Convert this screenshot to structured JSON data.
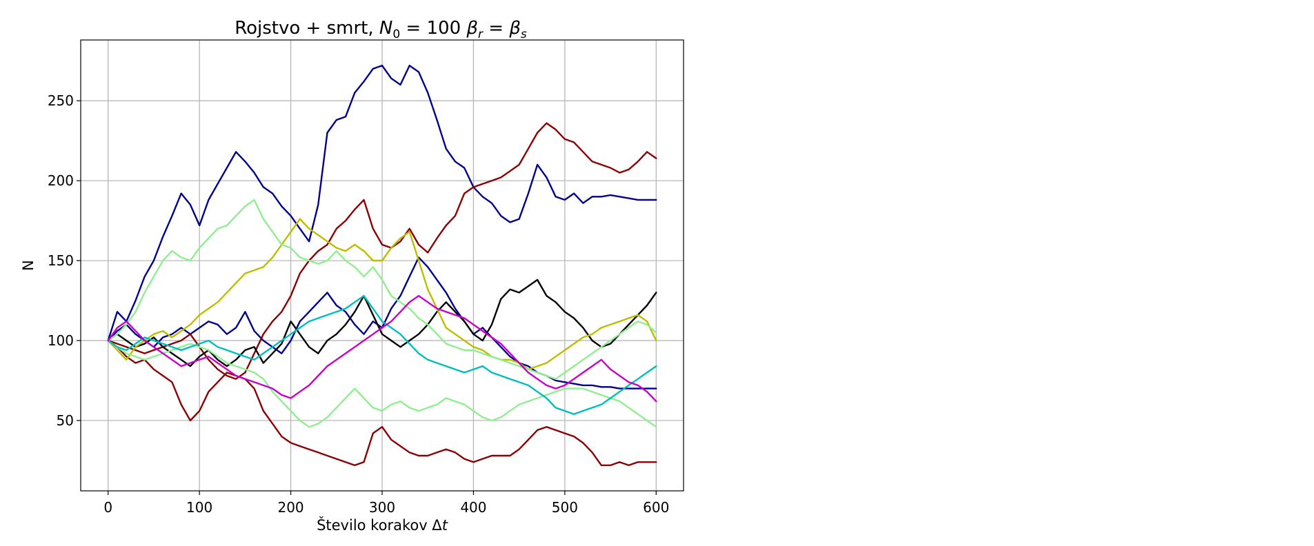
{
  "chart_data": {
    "type": "line",
    "title_parts": [
      "Rojstvo + smrt, ",
      "N",
      "0",
      " = 100  ",
      "β",
      "r",
      " = ",
      "β",
      "s"
    ],
    "xlabel_parts": [
      "Število korakov Δ",
      "t"
    ],
    "ylabel": "N",
    "xlim": [
      -30,
      630
    ],
    "ylim": [
      6,
      288
    ],
    "xticks": [
      0,
      100,
      200,
      300,
      400,
      500,
      600
    ],
    "yticks": [
      50,
      100,
      150,
      200,
      250
    ],
    "grid": true,
    "x_step": 10,
    "series": [
      {
        "color": "#00008b",
        "values": [
          100,
          118,
          112,
          125,
          140,
          150,
          165,
          178,
          192,
          185,
          172,
          188,
          198,
          208,
          218,
          212,
          205,
          196,
          192,
          184,
          178,
          170,
          162,
          185,
          230,
          238,
          240,
          255,
          262,
          270,
          272,
          264,
          260,
          272,
          268,
          255,
          238,
          220,
          212,
          208,
          196,
          190,
          186,
          178,
          174,
          176,
          192,
          210,
          202,
          190,
          188,
          192,
          186,
          190,
          190,
          191,
          190,
          189,
          188,
          188,
          188
        ]
      },
      {
        "color": "#00008b",
        "values": [
          100,
          106,
          110,
          104,
          100,
          96,
          102,
          104,
          108,
          104,
          108,
          112,
          110,
          104,
          108,
          118,
          106,
          100,
          96,
          92,
          100,
          112,
          118,
          124,
          130,
          122,
          118,
          110,
          104,
          112,
          108,
          120,
          128,
          140,
          152,
          146,
          138,
          130,
          120,
          112,
          104,
          108,
          102,
          96,
          90,
          86,
          84,
          80,
          78,
          75,
          74,
          73,
          72,
          72,
          71,
          71,
          70,
          70,
          70,
          70,
          70
        ]
      },
      {
        "color": "#8b0000",
        "values": [
          100,
          96,
          90,
          86,
          88,
          82,
          78,
          74,
          60,
          50,
          56,
          68,
          74,
          80,
          78,
          76,
          70,
          56,
          48,
          40,
          36,
          34,
          32,
          30,
          28,
          26,
          24,
          22,
          24,
          42,
          46,
          38,
          34,
          30,
          28,
          28,
          30,
          32,
          30,
          26,
          24,
          26,
          28,
          28,
          28,
          32,
          38,
          44,
          46,
          44,
          42,
          40,
          36,
          30,
          22,
          22,
          24,
          22,
          24,
          24,
          24
        ]
      },
      {
        "color": "#8b0000",
        "values": [
          100,
          98,
          96,
          94,
          92,
          94,
          96,
          98,
          100,
          104,
          96,
          88,
          82,
          78,
          76,
          80,
          92,
          104,
          112,
          118,
          128,
          142,
          150,
          156,
          160,
          170,
          175,
          182,
          188,
          170,
          160,
          158,
          162,
          170,
          160,
          155,
          164,
          172,
          178,
          192,
          196,
          198,
          200,
          202,
          206,
          210,
          220,
          230,
          236,
          232,
          226,
          224,
          218,
          212,
          210,
          208,
          205,
          207,
          212,
          218,
          214
        ]
      },
      {
        "color": "#000000",
        "values": [
          100,
          104,
          100,
          96,
          98,
          102,
          96,
          92,
          88,
          84,
          90,
          94,
          88,
          84,
          88,
          94,
          96,
          86,
          92,
          98,
          112,
          104,
          96,
          92,
          100,
          104,
          110,
          118,
          128,
          116,
          104,
          100,
          96,
          100,
          104,
          110,
          118,
          124,
          118,
          112,
          104,
          100,
          110,
          126,
          132,
          130,
          134,
          138,
          128,
          124,
          118,
          114,
          108,
          100,
          96,
          98,
          104,
          110,
          116,
          122,
          130
        ]
      },
      {
        "color": "#bdbd00",
        "values": [
          100,
          94,
          88,
          96,
          100,
          104,
          106,
          102,
          106,
          110,
          116,
          120,
          124,
          130,
          136,
          142,
          144,
          146,
          152,
          160,
          168,
          176,
          170,
          166,
          162,
          158,
          156,
          160,
          156,
          150,
          150,
          158,
          164,
          168,
          150,
          132,
          120,
          108,
          104,
          100,
          96,
          94,
          90,
          88,
          88,
          86,
          82,
          84,
          86,
          90,
          94,
          98,
          102,
          104,
          108,
          110,
          112,
          114,
          116,
          112,
          100
        ]
      },
      {
        "color": "#90ee90",
        "values": [
          100,
          104,
          110,
          118,
          130,
          140,
          150,
          156,
          152,
          150,
          158,
          164,
          170,
          172,
          178,
          184,
          188,
          176,
          168,
          160,
          158,
          152,
          150,
          148,
          150,
          156,
          150,
          146,
          140,
          146,
          138,
          128,
          124,
          120,
          114,
          110,
          104,
          98,
          96,
          94,
          94,
          92,
          90,
          88,
          86,
          84,
          82,
          80,
          78,
          76,
          80,
          84,
          88,
          92,
          96,
          100,
          104,
          108,
          112,
          110,
          105
        ]
      },
      {
        "color": "#90ee90",
        "values": [
          100,
          96,
          92,
          90,
          88,
          90,
          92,
          94,
          96,
          98,
          96,
          94,
          90,
          86,
          84,
          82,
          80,
          76,
          68,
          62,
          56,
          50,
          46,
          48,
          52,
          58,
          64,
          70,
          64,
          58,
          56,
          60,
          62,
          58,
          56,
          58,
          60,
          64,
          62,
          60,
          56,
          52,
          50,
          52,
          56,
          60,
          62,
          64,
          66,
          68,
          70,
          70,
          70,
          68,
          66,
          64,
          62,
          58,
          54,
          50,
          46
        ]
      },
      {
        "color": "#00bebe",
        "values": [
          100,
          96,
          94,
          98,
          102,
          100,
          98,
          96,
          94,
          96,
          98,
          100,
          96,
          94,
          92,
          90,
          88,
          92,
          96,
          100,
          104,
          108,
          112,
          114,
          116,
          118,
          120,
          124,
          128,
          120,
          112,
          108,
          104,
          98,
          92,
          88,
          86,
          84,
          82,
          80,
          82,
          84,
          80,
          78,
          76,
          74,
          72,
          68,
          64,
          58,
          56,
          54,
          56,
          58,
          60,
          64,
          68,
          72,
          76,
          80,
          84
        ]
      },
      {
        "color": "#c800c8",
        "values": [
          100,
          108,
          112,
          106,
          100,
          96,
          92,
          88,
          84,
          86,
          88,
          90,
          86,
          82,
          78,
          76,
          74,
          72,
          70,
          66,
          64,
          68,
          72,
          78,
          84,
          88,
          92,
          96,
          100,
          104,
          108,
          112,
          118,
          124,
          128,
          124,
          120,
          118,
          116,
          114,
          110,
          106,
          102,
          98,
          92,
          86,
          80,
          76,
          72,
          70,
          72,
          76,
          80,
          84,
          88,
          82,
          78,
          74,
          72,
          68,
          62
        ]
      }
    ]
  }
}
